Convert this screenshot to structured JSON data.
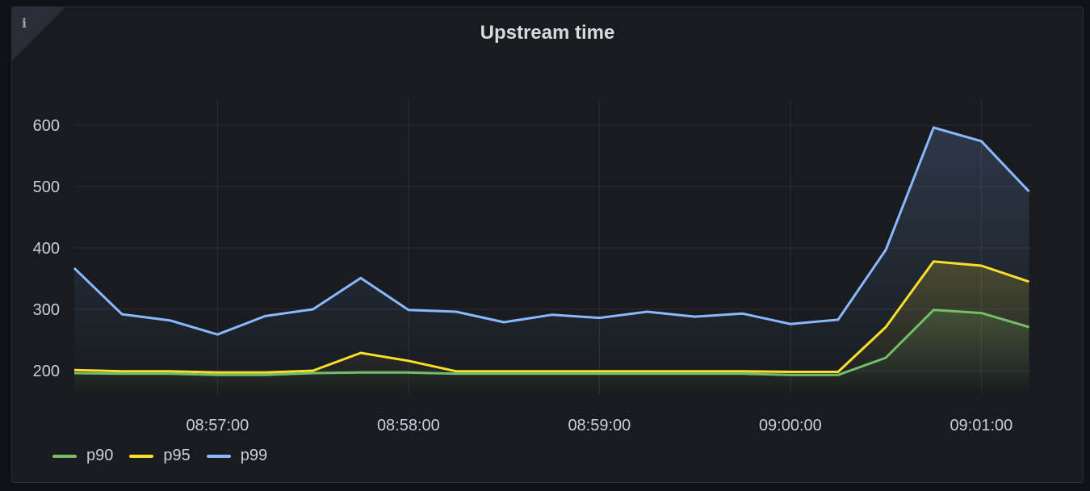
{
  "panel": {
    "title": "Upstream time",
    "info_icon": "info-icon"
  },
  "chart_data": {
    "type": "line",
    "title": "Upstream time",
    "x": [
      "08:56:15",
      "08:56:30",
      "08:56:45",
      "08:57:00",
      "08:57:15",
      "08:57:30",
      "08:57:45",
      "08:58:00",
      "08:58:15",
      "08:58:30",
      "08:58:45",
      "08:59:00",
      "08:59:15",
      "08:59:30",
      "08:59:45",
      "09:00:00",
      "09:00:15",
      "09:00:30",
      "09:00:45",
      "09:01:00",
      "09:01:15"
    ],
    "x_ticks": [
      "08:57:00",
      "08:58:00",
      "08:59:00",
      "09:00:00",
      "09:01:00"
    ],
    "y_ticks": [
      200,
      300,
      400,
      500,
      600
    ],
    "ylim": [
      150,
      640
    ],
    "grid": true,
    "legend": "bottom-left",
    "series": [
      {
        "name": "p90",
        "color": "#73bf69",
        "values": [
          196,
          195,
          195,
          193,
          193,
          196,
          197,
          197,
          195,
          195,
          195,
          195,
          195,
          195,
          195,
          193,
          193,
          221,
          299,
          294,
          271
        ]
      },
      {
        "name": "p95",
        "color": "#fade2a",
        "values": [
          201,
          199,
          199,
          197,
          197,
          200,
          229,
          216,
          199,
          199,
          199,
          199,
          199,
          199,
          199,
          198,
          198,
          271,
          378,
          371,
          345
        ]
      },
      {
        "name": "p99",
        "color": "#8ab8ff",
        "values": [
          367,
          292,
          282,
          259,
          289,
          300,
          351,
          299,
          296,
          279,
          291,
          286,
          296,
          288,
          293,
          276,
          283,
          397,
          596,
          574,
          492
        ]
      }
    ]
  }
}
